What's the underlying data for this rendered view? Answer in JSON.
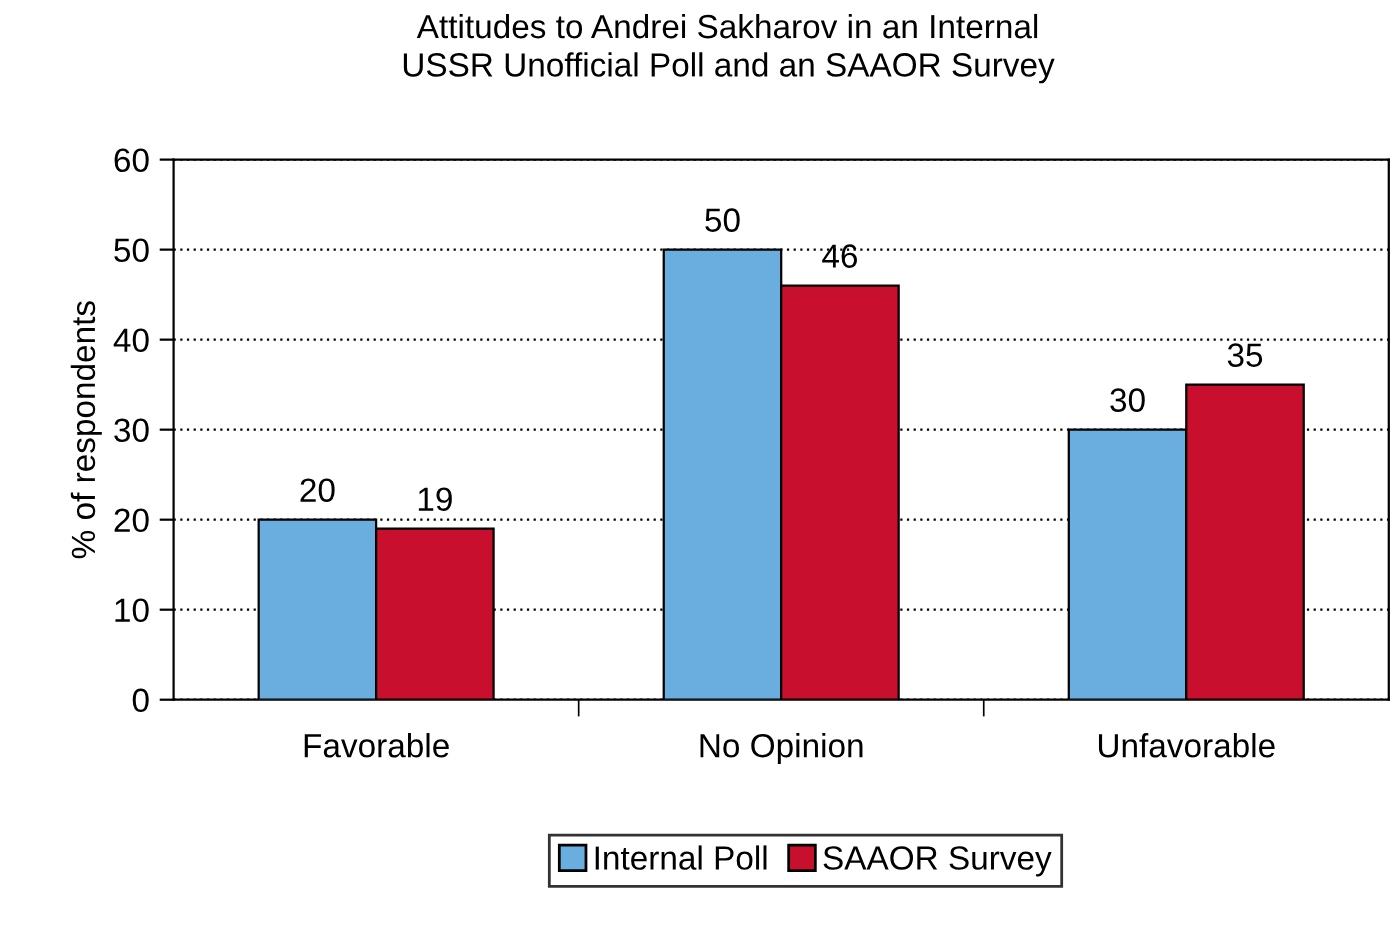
{
  "chart_data": {
    "type": "bar",
    "title": "Attitudes to Andrei Sakharov in an Internal\nUSSR Unofficial Poll and an SAAOR Survey",
    "ylabel": "% of respondents",
    "categories": [
      "Favorable",
      "No Opinion",
      "Unfavorable"
    ],
    "series": [
      {
        "name": "Internal Poll",
        "color": "#6aaee0",
        "values": [
          20,
          50,
          30
        ]
      },
      {
        "name": "SAAOR Survey",
        "color": "#c8102e",
        "values": [
          19,
          46,
          35
        ]
      }
    ],
    "ylim": [
      0,
      60
    ],
    "yticks": [
      0,
      10,
      20,
      30,
      40,
      50,
      60
    ],
    "grid": "y",
    "data_labels": true,
    "legend": "bottom"
  }
}
